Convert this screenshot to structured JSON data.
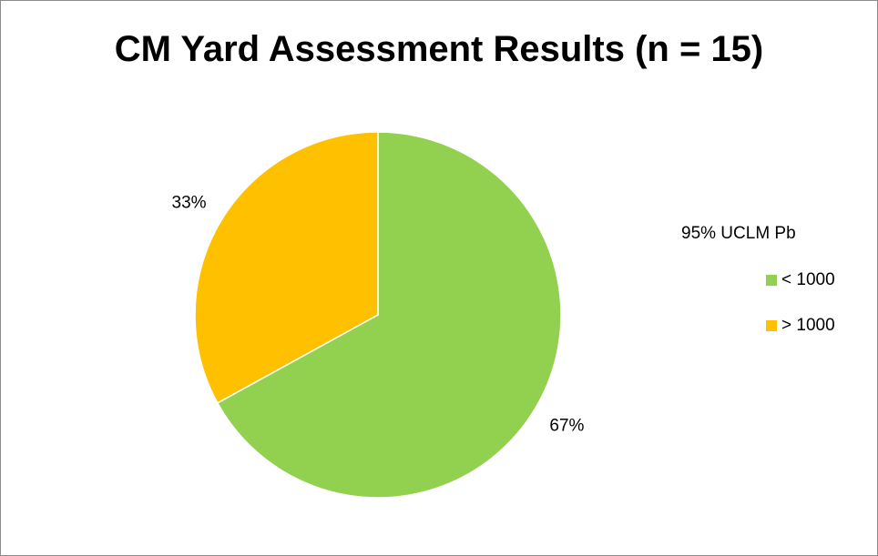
{
  "chart_data": {
    "type": "pie",
    "title": "CM Yard Assessment Results (n = 15)",
    "legend_title": "95% UCLM Pb",
    "legend_position": "right",
    "slices": [
      {
        "label": "< 1000",
        "value": 67,
        "value_label": "67%",
        "color": "#92d050"
      },
      {
        "label": "> 1000",
        "value": 33,
        "value_label": "33%",
        "color": "#ffc000"
      }
    ]
  }
}
